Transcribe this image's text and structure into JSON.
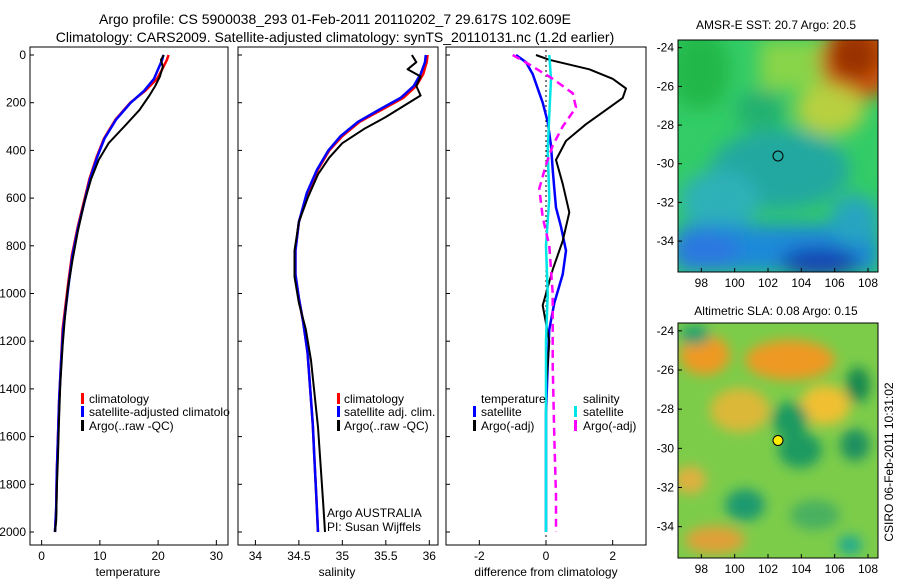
{
  "header": {
    "line1": "Argo profile: CS 5900038_293 01-Feb-2011 20110202_7 29.617S 102.609E",
    "line2": "Climatology: CARS2009. Satellite-adjusted climatology: synTS_20110131.nc (1.2d earlier)"
  },
  "colors": {
    "climatology": "#ff0000",
    "satellite": "#0000ff",
    "argo": "#000000",
    "satellite_salinity": "#00e5e5",
    "argo_salinity": "#ff00ff"
  },
  "depth_ticks": [
    "0",
    "200",
    "400",
    "600",
    "800",
    "1000",
    "1200",
    "1400",
    "1600",
    "1800",
    "2000"
  ],
  "chart_data": [
    {
      "type": "line",
      "id": "temperature",
      "xlabel": "temperature",
      "ylabel": "",
      "xlim": [
        -2,
        32
      ],
      "ylim": [
        2050,
        0
      ],
      "xticks": [
        0,
        10,
        20,
        30
      ],
      "legend": [
        "climatology",
        "satellite-adjusted climatolo",
        "Argo(..raw -QC)"
      ],
      "series": [
        {
          "name": "climatology",
          "x": [
            21.8,
            21.5,
            20.7,
            19.8,
            17.8,
            15.2,
            12.7,
            10.7,
            9.4,
            8.2,
            7.2,
            6.2,
            5.2,
            4.6,
            4.1,
            3.6,
            3.3,
            3.0,
            2.8,
            2.6,
            2.5,
            2.3
          ],
          "y": [
            0,
            20,
            60,
            100,
            150,
            200,
            270,
            350,
            430,
            520,
            620,
            720,
            840,
            950,
            1050,
            1150,
            1300,
            1450,
            1600,
            1750,
            1900,
            2000
          ]
        },
        {
          "name": "satellite-adjusted climatology",
          "x": [
            20.9,
            20.7,
            20.0,
            19.3,
            17.6,
            15.3,
            12.8,
            10.8,
            9.5,
            8.3,
            7.3,
            6.3,
            5.3,
            4.7,
            4.2,
            3.7,
            3.3,
            3.0,
            2.8,
            2.6,
            2.5,
            2.3
          ],
          "y": [
            0,
            20,
            60,
            100,
            150,
            200,
            270,
            350,
            430,
            520,
            620,
            720,
            840,
            950,
            1050,
            1150,
            1300,
            1450,
            1600,
            1750,
            1900,
            2000
          ]
        },
        {
          "name": "Argo(..raw -QC)",
          "x": [
            21.0,
            20.5,
            20.8,
            20.3,
            19.5,
            18.5,
            16.8,
            14.2,
            11.5,
            9.8,
            8.5,
            7.3,
            6.2,
            5.3,
            4.5,
            4.0,
            3.6,
            3.2,
            3.0,
            2.8,
            2.6,
            2.5,
            2.3
          ],
          "y": [
            0,
            20,
            50,
            90,
            130,
            170,
            230,
            300,
            370,
            440,
            520,
            620,
            740,
            860,
            980,
            1100,
            1220,
            1380,
            1520,
            1680,
            1820,
            1950,
            2000
          ]
        }
      ]
    },
    {
      "type": "line",
      "id": "salinity",
      "xlabel": "salinity",
      "ylabel": "",
      "xlim": [
        33.8,
        36.1
      ],
      "ylim": [
        2050,
        0
      ],
      "xticks": [
        34,
        34.5,
        35,
        35.5,
        36
      ],
      "legend": [
        "climatology",
        "satellite adj. clim.",
        "Argo(..raw -QC)"
      ],
      "annotations": [
        "Argo AUSTRALIA",
        "PI: Susan Wijffels"
      ],
      "series": [
        {
          "name": "climatology",
          "x": [
            35.98,
            35.97,
            35.93,
            35.85,
            35.7,
            35.45,
            35.2,
            35.0,
            34.85,
            34.72,
            34.6,
            34.5,
            34.46,
            34.46,
            34.5,
            34.55,
            34.6,
            34.63,
            34.66,
            34.68,
            34.7,
            34.72
          ],
          "y": [
            0,
            30,
            80,
            130,
            180,
            230,
            280,
            340,
            400,
            480,
            580,
            700,
            820,
            920,
            1020,
            1120,
            1250,
            1400,
            1550,
            1700,
            1850,
            2000
          ]
        },
        {
          "name": "satellite adj. clim.",
          "x": [
            35.96,
            35.95,
            35.9,
            35.82,
            35.67,
            35.42,
            35.18,
            34.98,
            34.84,
            34.71,
            34.59,
            34.5,
            34.46,
            34.46,
            34.5,
            34.55,
            34.6,
            34.63,
            34.66,
            34.68,
            34.7,
            34.72
          ],
          "y": [
            0,
            30,
            80,
            130,
            180,
            230,
            280,
            340,
            400,
            480,
            580,
            700,
            820,
            920,
            1020,
            1120,
            1250,
            1400,
            1550,
            1700,
            1850,
            2000
          ]
        },
        {
          "name": "Argo(..raw -QC)",
          "x": [
            35.8,
            35.85,
            35.75,
            35.9,
            35.85,
            35.9,
            35.72,
            35.5,
            35.25,
            35.0,
            34.85,
            34.72,
            34.6,
            34.5,
            34.45,
            34.45,
            34.5,
            34.58,
            34.64,
            34.68,
            34.72,
            34.75,
            34.78,
            34.8
          ],
          "y": [
            0,
            30,
            60,
            90,
            130,
            170,
            210,
            260,
            310,
            370,
            430,
            500,
            600,
            700,
            820,
            930,
            1040,
            1150,
            1280,
            1420,
            1560,
            1720,
            1880,
            2000
          ]
        }
      ]
    },
    {
      "type": "line",
      "id": "difference",
      "xlabel": "difference from climatology",
      "ylabel": "",
      "xlim": [
        -3.0,
        3.0
      ],
      "ylim": [
        2050,
        0
      ],
      "xticks": [
        -2,
        0,
        2
      ],
      "legend": [
        "temperature",
        "satellite",
        "Argo(-adj)",
        "salinity",
        "satellite",
        "Argo(-adj)"
      ],
      "series": [
        {
          "name": "temperature satellite",
          "x": [
            -0.9,
            -0.6,
            -0.4,
            -0.25,
            -0.1,
            0.05,
            0.15,
            0.2,
            0.25,
            0.3,
            0.45,
            0.6,
            0.5,
            0.25,
            0.1,
            0.05,
            0.0,
            0.0,
            0.0
          ],
          "y": [
            0,
            30,
            80,
            140,
            200,
            280,
            380,
            480,
            560,
            640,
            720,
            820,
            920,
            1040,
            1150,
            1300,
            1500,
            1800,
            2000
          ]
        },
        {
          "name": "temperature Argo(-adj)",
          "x": [
            -0.3,
            0.1,
            1.3,
            2.0,
            2.4,
            2.3,
            1.8,
            1.2,
            0.6,
            0.3,
            0.5,
            0.7,
            0.5,
            0.2,
            -0.1,
            0.1,
            0.0,
            0.0,
            0.0
          ],
          "y": [
            0,
            20,
            60,
            100,
            140,
            180,
            230,
            290,
            360,
            440,
            540,
            660,
            780,
            900,
            1050,
            1200,
            1400,
            1700,
            2000
          ]
        },
        {
          "name": "salinity satellite",
          "x": [
            0.1,
            0.15,
            0.1,
            0.05,
            0.1,
            0.0,
            0.05,
            0.0,
            0.0,
            0.0,
            0.0
          ],
          "y": [
            0,
            100,
            250,
            400,
            600,
            800,
            1000,
            1200,
            1500,
            1800,
            2000
          ]
        },
        {
          "name": "salinity Argo(-adj)",
          "x": [
            -1.0,
            -0.5,
            0.2,
            0.8,
            0.9,
            0.5,
            0.2,
            0.0,
            -0.2,
            -0.1,
            0.1,
            0.2,
            0.2,
            0.25,
            0.3,
            0.3
          ],
          "y": [
            0,
            40,
            100,
            160,
            220,
            300,
            380,
            460,
            560,
            680,
            800,
            1000,
            1300,
            1600,
            1850,
            2000
          ]
        }
      ]
    },
    {
      "type": "heatmap",
      "id": "sst_map",
      "title": "AMSR-E SST: 20.7 Argo: 20.5",
      "xticks": [
        98,
        100,
        102,
        104,
        106,
        108
      ],
      "yticks": [
        -24,
        -26,
        -28,
        -30,
        -32,
        -34
      ],
      "xlim": [
        96.6,
        108.6
      ],
      "ylim": [
        -35.6,
        -23.6
      ],
      "marker": {
        "lon": 102.6,
        "lat": -29.6
      }
    },
    {
      "type": "heatmap",
      "id": "sla_map",
      "title": "Altimetric SLA: 0.08 Argo: 0.15",
      "xticks": [
        98,
        100,
        102,
        104,
        106,
        108
      ],
      "yticks": [
        -24,
        -26,
        -28,
        -30,
        -32,
        -34
      ],
      "xlim": [
        96.6,
        108.6
      ],
      "ylim": [
        -35.6,
        -23.6
      ],
      "marker": {
        "lon": 102.6,
        "lat": -29.6
      }
    }
  ],
  "footer_stamp": "CSIRO 06-Feb-2011 10:31:02"
}
